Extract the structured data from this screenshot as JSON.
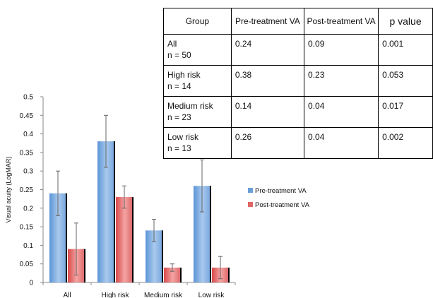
{
  "chart_data": {
    "type": "bar",
    "ylabel": "Visual acuity (LogMAR)",
    "xlabel": "",
    "title": "",
    "categories": [
      "All",
      "High risk",
      "Medium risk",
      "Low risk"
    ],
    "ylim": [
      0,
      0.5
    ],
    "yticks": [
      "0",
      "0.05",
      "0.1",
      "0.15",
      "0.2",
      "0.25",
      "0.3",
      "0.35",
      "0.4",
      "0.45",
      "0.5"
    ],
    "grid": false,
    "legend_position": "right",
    "series": [
      {
        "name": "Pre-treatment VA",
        "color": "#6a9fd8",
        "values": [
          0.24,
          0.38,
          0.14,
          0.26
        ],
        "error_low": [
          0.18,
          0.31,
          0.11,
          0.19
        ],
        "error_high": [
          0.3,
          0.45,
          0.17,
          0.33
        ]
      },
      {
        "name": "Post-treatment VA",
        "color": "#e06666",
        "values": [
          0.09,
          0.23,
          0.04,
          0.04
        ],
        "error_low": [
          0.02,
          0.2,
          0.03,
          0.01
        ],
        "error_high": [
          0.16,
          0.26,
          0.05,
          0.07
        ]
      }
    ]
  },
  "table": {
    "headers": [
      "Group",
      "Pre-treatment VA",
      "Post-treatment VA",
      "p value"
    ],
    "rows": [
      {
        "group": "All",
        "n": "n = 50",
        "pre": "0.24",
        "post": "0.09",
        "p": "0.001"
      },
      {
        "group": "High risk",
        "n": "n = 14",
        "pre": "0.38",
        "post": "0.23",
        "p": "0.053"
      },
      {
        "group": "Medium risk",
        "n": "n = 23",
        "pre": "0.14",
        "post": "0.04",
        "p": "0.017"
      },
      {
        "group": "Low risk",
        "n": "n = 13",
        "pre": "0.26",
        "post": "0.04",
        "p": "0.002"
      }
    ]
  }
}
